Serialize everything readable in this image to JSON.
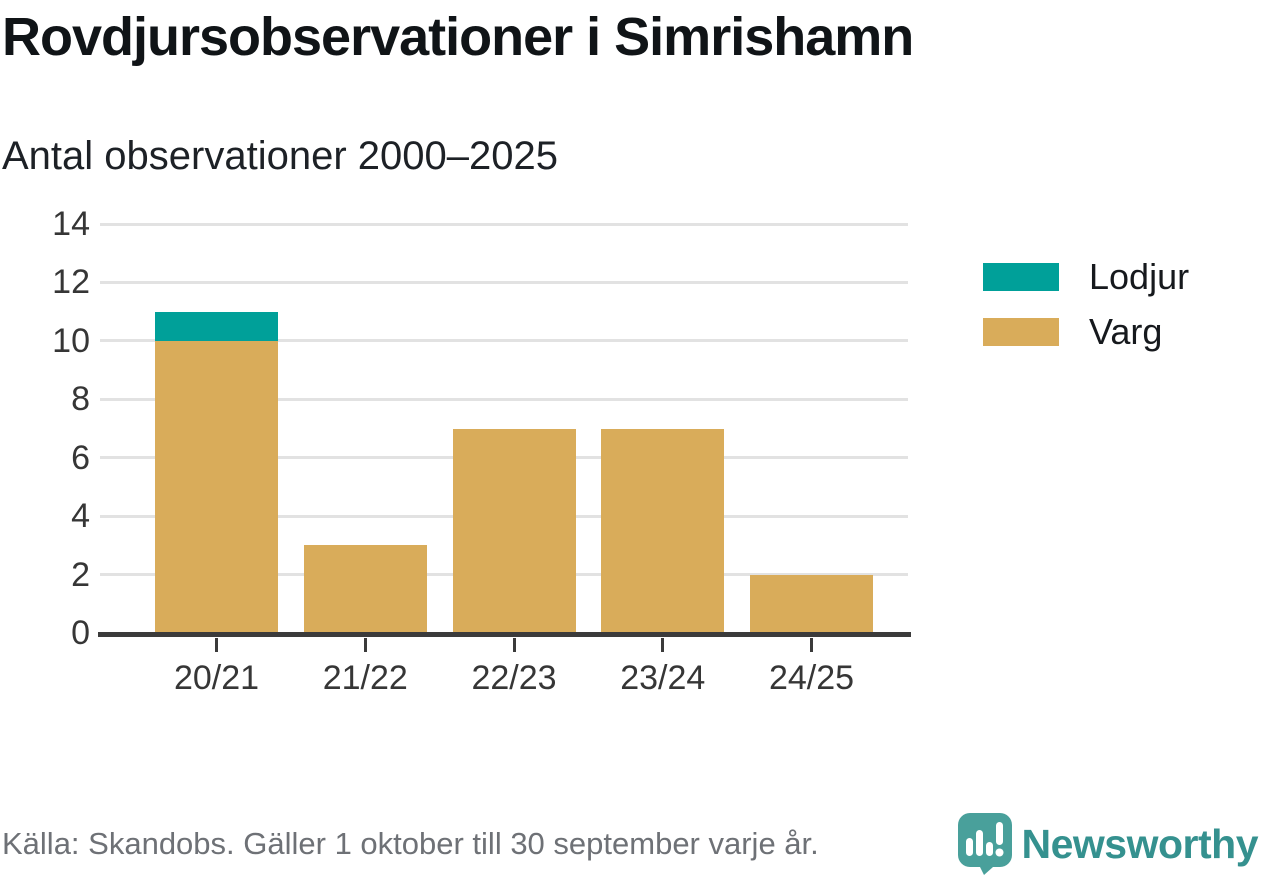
{
  "header": {
    "title": "Rovdjursobservationer i Simrishamn",
    "subtitle": "Antal observationer 2000–2025"
  },
  "chart_data": {
    "type": "bar",
    "stacked": true,
    "title": "Rovdjursobservationer i Simrishamn",
    "subtitle": "Antal observationer 2000–2025",
    "categories": [
      "20/21",
      "21/22",
      "22/23",
      "23/24",
      "24/25"
    ],
    "series": [
      {
        "name": "Varg",
        "color": "#D9AC5A",
        "values": [
          10,
          3,
          7,
          7,
          2
        ]
      },
      {
        "name": "Lodjur",
        "color": "#00A099",
        "values": [
          1,
          0,
          0,
          0,
          0
        ]
      }
    ],
    "totals": [
      11,
      3,
      7,
      7,
      2
    ],
    "xlabel": "",
    "ylabel": "",
    "ylim": [
      0,
      14
    ],
    "yticks": [
      0,
      2,
      4,
      6,
      8,
      10,
      12,
      14
    ],
    "grid": true,
    "legend_position": "right",
    "legend": [
      {
        "label": "Lodjur",
        "color": "#00A099"
      },
      {
        "label": "Varg",
        "color": "#D9AC5A"
      }
    ]
  },
  "footer": {
    "source": "Källa: Skandobs. Gäller 1 oktober till 30 september varje år.",
    "brand": "Newsworthy"
  },
  "colors": {
    "varg": "#D9AC5A",
    "lodjur": "#00A099",
    "grid": "#E2E2E2",
    "axis": "#3B3B3B",
    "text_title": "#101417",
    "text_axis": "#363636",
    "text_footer": "#6E7176",
    "brand_teal": "#35918F",
    "logo_bubble": "#49A09B"
  }
}
